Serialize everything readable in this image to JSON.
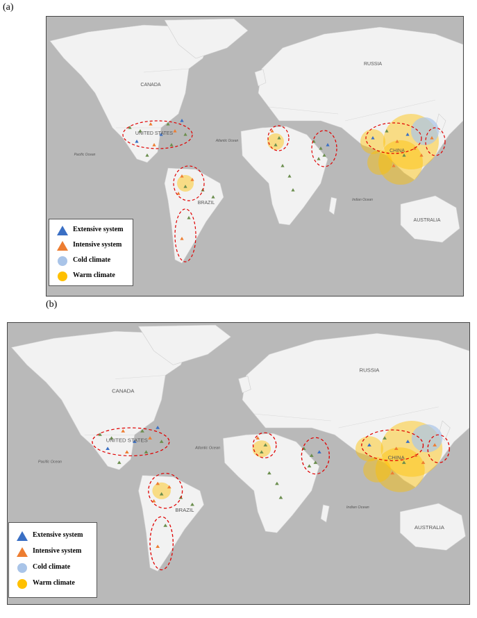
{
  "panels": [
    {
      "label": "(a)",
      "place_labels": {
        "canada": "CANADA",
        "united_states": "UNITED STATES",
        "brazil": "BRAZIL",
        "russia": "RUSSIA",
        "china": "CHINA",
        "australia": "AUSTRALIA"
      },
      "ocean_labels": {
        "pacific": "Pacific Ocean",
        "atlantic": "Atlantic Ocean",
        "indian": "Indian Ocean"
      }
    },
    {
      "label": "(b)",
      "place_labels": {
        "canada": "CANADA",
        "united_states": "UNITED STATES",
        "brazil": "BRAZIL",
        "russia": "RUSSIA",
        "china": "CHINA",
        "australia": "AUSTRALIA"
      },
      "ocean_labels": {
        "pacific": "Pacific Ocean",
        "atlantic": "Atlantic Ocean",
        "indian": "Indian Ocean"
      }
    }
  ],
  "legend": {
    "extensive": "Extensive system",
    "intensive": "Intensive system",
    "cold": "Cold climate",
    "warm": "Warm climate"
  },
  "colors": {
    "ocean": "#b9b9b9",
    "land": "#f2f2f2",
    "extensive": "#3a6fc4",
    "intensive": "#ed7d31",
    "mixed_marker": "#6b8e4e",
    "cold": "#a9c4e8",
    "warm": "#ffc000",
    "hotspot_outline": "#e00000"
  }
}
